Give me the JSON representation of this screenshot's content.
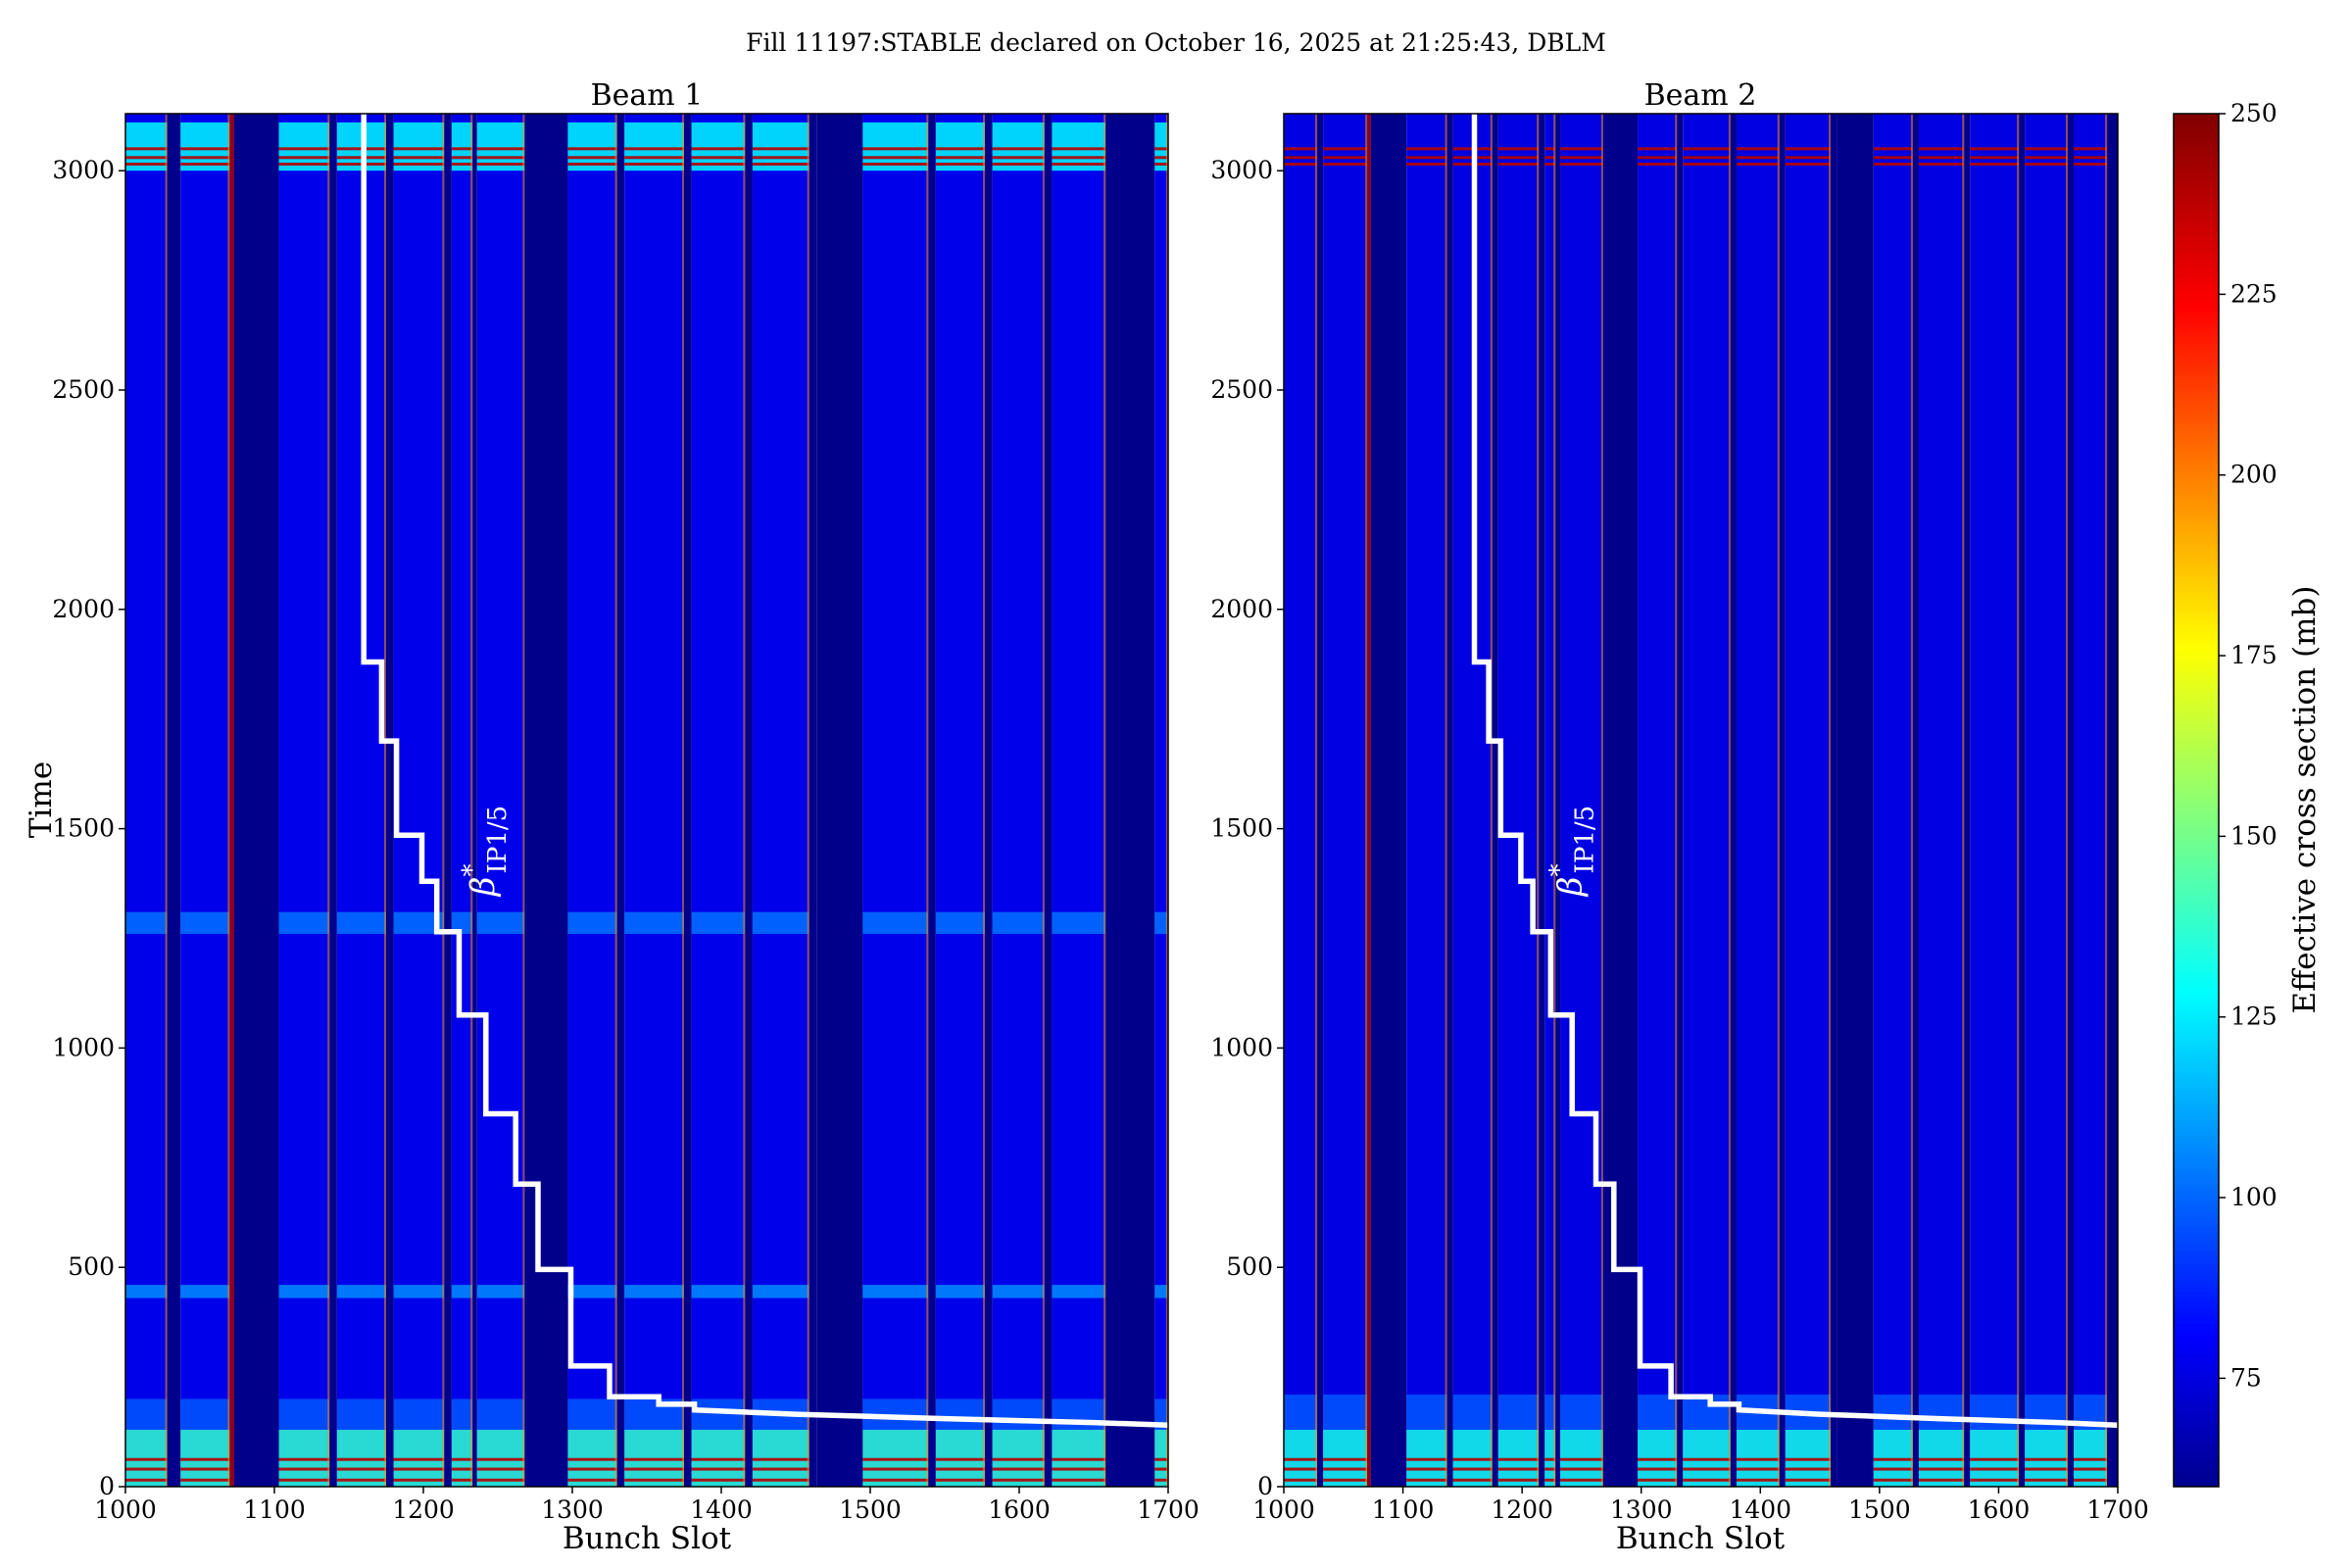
{
  "figure": {
    "title": "Fill 11197:STABLE declared on October 16, 2025 at 21:25:43, DBLM"
  },
  "colorbar": {
    "label": "Effective cross section (mb)",
    "range": [
      60,
      250
    ],
    "ticks": [
      75,
      100,
      125,
      150,
      175,
      200,
      225,
      250
    ],
    "colormap": "jet"
  },
  "chart_data": [
    {
      "type": "heatmap",
      "title": "Beam 1",
      "xlabel": "Bunch Slot",
      "ylabel": "Time",
      "xlim": [
        1000,
        1700
      ],
      "ylim": [
        0,
        3130
      ],
      "xticks": [
        1000,
        1100,
        1200,
        1300,
        1400,
        1500,
        1600,
        1700
      ],
      "yticks": [
        0,
        500,
        1000,
        1500,
        2000,
        2500,
        3000
      ],
      "base_value": 80,
      "empty_value": 62,
      "bands": [
        {
          "x": [
            1000,
            1028
          ],
          "filled": true
        },
        {
          "x": [
            1028,
            1037
          ],
          "filled": false
        },
        {
          "x": [
            1037,
            1070
          ],
          "filled": true
        },
        {
          "x": [
            1070,
            1073
          ],
          "filled": false,
          "edge": 240
        },
        {
          "x": [
            1073,
            1103
          ],
          "filled": false
        },
        {
          "x": [
            1103,
            1137
          ],
          "filled": true
        },
        {
          "x": [
            1137,
            1142
          ],
          "filled": false
        },
        {
          "x": [
            1142,
            1175
          ],
          "filled": true
        },
        {
          "x": [
            1175,
            1180
          ],
          "filled": false
        },
        {
          "x": [
            1180,
            1214
          ],
          "filled": true
        },
        {
          "x": [
            1214,
            1219
          ],
          "filled": false
        },
        {
          "x": [
            1219,
            1233
          ],
          "filled": true
        },
        {
          "x": [
            1233,
            1236
          ],
          "filled": false
        },
        {
          "x": [
            1236,
            1268
          ],
          "filled": true
        },
        {
          "x": [
            1268,
            1297
          ],
          "filled": false
        },
        {
          "x": [
            1297,
            1330
          ],
          "filled": true
        },
        {
          "x": [
            1330,
            1335
          ],
          "filled": false
        },
        {
          "x": [
            1335,
            1375
          ],
          "filled": true
        },
        {
          "x": [
            1375,
            1380
          ],
          "filled": false
        },
        {
          "x": [
            1380,
            1416
          ],
          "filled": true
        },
        {
          "x": [
            1416,
            1421
          ],
          "filled": false
        },
        {
          "x": [
            1421,
            1459
          ],
          "filled": true
        },
        {
          "x": [
            1459,
            1464
          ],
          "filled": false
        },
        {
          "x": [
            1464,
            1495
          ],
          "filled": false
        },
        {
          "x": [
            1495,
            1539
          ],
          "filled": true
        },
        {
          "x": [
            1539,
            1544
          ],
          "filled": false
        },
        {
          "x": [
            1544,
            1577
          ],
          "filled": true
        },
        {
          "x": [
            1577,
            1582
          ],
          "filled": false
        },
        {
          "x": [
            1582,
            1617
          ],
          "filled": true
        },
        {
          "x": [
            1617,
            1622
          ],
          "filled": false
        },
        {
          "x": [
            1622,
            1658
          ],
          "filled": true
        },
        {
          "x": [
            1658,
            1691
          ],
          "filled": false
        },
        {
          "x": [
            1691,
            1700
          ],
          "filled": true
        }
      ],
      "time_features": [
        {
          "t": [
            0,
            130
          ],
          "value": 140
        },
        {
          "t": [
            130,
            200
          ],
          "value": 100
        },
        {
          "t": [
            430,
            460
          ],
          "value": 110
        },
        {
          "t": [
            1260,
            1310
          ],
          "value": 105
        },
        {
          "t": [
            3000,
            3110
          ],
          "value": 130
        }
      ],
      "hot_lines_t": [
        15,
        40,
        62,
        3015,
        3030,
        3050
      ],
      "beta_star_steps": [
        {
          "x": 1160,
          "t": 3130
        },
        {
          "x": 1160,
          "t": 1880
        },
        {
          "x": 1172,
          "t": 1880
        },
        {
          "x": 1172,
          "t": 1700
        },
        {
          "x": 1182,
          "t": 1700
        },
        {
          "x": 1182,
          "t": 1485
        },
        {
          "x": 1199,
          "t": 1485
        },
        {
          "x": 1199,
          "t": 1380
        },
        {
          "x": 1209,
          "t": 1380
        },
        {
          "x": 1209,
          "t": 1265
        },
        {
          "x": 1224,
          "t": 1265
        },
        {
          "x": 1224,
          "t": 1075
        },
        {
          "x": 1242,
          "t": 1075
        },
        {
          "x": 1242,
          "t": 850
        },
        {
          "x": 1262,
          "t": 850
        },
        {
          "x": 1262,
          "t": 690
        },
        {
          "x": 1277,
          "t": 690
        },
        {
          "x": 1277,
          "t": 495
        },
        {
          "x": 1299,
          "t": 495
        },
        {
          "x": 1299,
          "t": 275
        },
        {
          "x": 1325,
          "t": 275
        },
        {
          "x": 1325,
          "t": 205
        },
        {
          "x": 1358,
          "t": 205
        },
        {
          "x": 1358,
          "t": 188
        },
        {
          "x": 1382,
          "t": 188
        },
        {
          "x": 1382,
          "t": 175
        },
        {
          "x": 1450,
          "t": 165
        },
        {
          "x": 1550,
          "t": 155
        },
        {
          "x": 1650,
          "t": 146
        },
        {
          "x": 1700,
          "t": 140
        }
      ],
      "beta_label": {
        "symbol": "β",
        "sup": "*",
        "sub": "IP1/5",
        "x": 1238,
        "t": 1450
      }
    },
    {
      "type": "heatmap",
      "title": "Beam 2",
      "xlabel": "Bunch Slot",
      "ylabel": "",
      "xlim": [
        1000,
        1700
      ],
      "ylim": [
        0,
        3130
      ],
      "xticks": [
        1000,
        1100,
        1200,
        1300,
        1400,
        1500,
        1600,
        1700
      ],
      "yticks": [
        0,
        500,
        1000,
        1500,
        2000,
        2500,
        3000
      ],
      "base_value": 78,
      "empty_value": 62,
      "bands": [
        {
          "x": [
            1000,
            1028
          ],
          "filled": true
        },
        {
          "x": [
            1028,
            1033
          ],
          "filled": false
        },
        {
          "x": [
            1033,
            1070
          ],
          "filled": true
        },
        {
          "x": [
            1070,
            1073
          ],
          "filled": false,
          "edge": 240
        },
        {
          "x": [
            1073,
            1103
          ],
          "filled": false
        },
        {
          "x": [
            1103,
            1137
          ],
          "filled": true
        },
        {
          "x": [
            1137,
            1142
          ],
          "filled": false
        },
        {
          "x": [
            1142,
            1175
          ],
          "filled": true
        },
        {
          "x": [
            1175,
            1180
          ],
          "filled": false
        },
        {
          "x": [
            1180,
            1214
          ],
          "filled": true
        },
        {
          "x": [
            1214,
            1219
          ],
          "filled": false
        },
        {
          "x": [
            1219,
            1228
          ],
          "filled": true
        },
        {
          "x": [
            1228,
            1232
          ],
          "filled": false
        },
        {
          "x": [
            1232,
            1268
          ],
          "filled": true
        },
        {
          "x": [
            1268,
            1297
          ],
          "filled": false
        },
        {
          "x": [
            1297,
            1330
          ],
          "filled": true
        },
        {
          "x": [
            1330,
            1335
          ],
          "filled": false
        },
        {
          "x": [
            1335,
            1375
          ],
          "filled": true
        },
        {
          "x": [
            1375,
            1380
          ],
          "filled": false
        },
        {
          "x": [
            1380,
            1416
          ],
          "filled": true
        },
        {
          "x": [
            1416,
            1421
          ],
          "filled": false
        },
        {
          "x": [
            1421,
            1459
          ],
          "filled": true
        },
        {
          "x": [
            1459,
            1464
          ],
          "filled": false
        },
        {
          "x": [
            1464,
            1495
          ],
          "filled": false
        },
        {
          "x": [
            1495,
            1528
          ],
          "filled": true
        },
        {
          "x": [
            1528,
            1533
          ],
          "filled": false
        },
        {
          "x": [
            1533,
            1571
          ],
          "filled": true
        },
        {
          "x": [
            1571,
            1576
          ],
          "filled": false
        },
        {
          "x": [
            1576,
            1617
          ],
          "filled": true
        },
        {
          "x": [
            1617,
            1622
          ],
          "filled": false
        },
        {
          "x": [
            1622,
            1658
          ],
          "filled": true
        },
        {
          "x": [
            1658,
            1663
          ],
          "filled": false
        },
        {
          "x": [
            1663,
            1691
          ],
          "filled": true
        },
        {
          "x": [
            1691,
            1700
          ],
          "filled": false
        }
      ],
      "time_features": [
        {
          "t": [
            0,
            130
          ],
          "value": 135
        },
        {
          "t": [
            130,
            210
          ],
          "value": 100
        }
      ],
      "hot_lines_t": [
        15,
        40,
        62,
        3015,
        3030,
        3050
      ],
      "beta_star_steps": [
        {
          "x": 1160,
          "t": 3130
        },
        {
          "x": 1160,
          "t": 1880
        },
        {
          "x": 1172,
          "t": 1880
        },
        {
          "x": 1172,
          "t": 1700
        },
        {
          "x": 1182,
          "t": 1700
        },
        {
          "x": 1182,
          "t": 1485
        },
        {
          "x": 1199,
          "t": 1485
        },
        {
          "x": 1199,
          "t": 1380
        },
        {
          "x": 1209,
          "t": 1380
        },
        {
          "x": 1209,
          "t": 1265
        },
        {
          "x": 1224,
          "t": 1265
        },
        {
          "x": 1224,
          "t": 1075
        },
        {
          "x": 1242,
          "t": 1075
        },
        {
          "x": 1242,
          "t": 850
        },
        {
          "x": 1262,
          "t": 850
        },
        {
          "x": 1262,
          "t": 690
        },
        {
          "x": 1277,
          "t": 690
        },
        {
          "x": 1277,
          "t": 495
        },
        {
          "x": 1299,
          "t": 495
        },
        {
          "x": 1299,
          "t": 275
        },
        {
          "x": 1325,
          "t": 275
        },
        {
          "x": 1325,
          "t": 205
        },
        {
          "x": 1358,
          "t": 205
        },
        {
          "x": 1358,
          "t": 188
        },
        {
          "x": 1382,
          "t": 188
        },
        {
          "x": 1382,
          "t": 175
        },
        {
          "x": 1450,
          "t": 165
        },
        {
          "x": 1550,
          "t": 155
        },
        {
          "x": 1650,
          "t": 146
        },
        {
          "x": 1700,
          "t": 140
        }
      ],
      "beta_label": {
        "symbol": "β",
        "sup": "*",
        "sub": "IP1/5",
        "x": 1238,
        "t": 1450
      }
    }
  ]
}
